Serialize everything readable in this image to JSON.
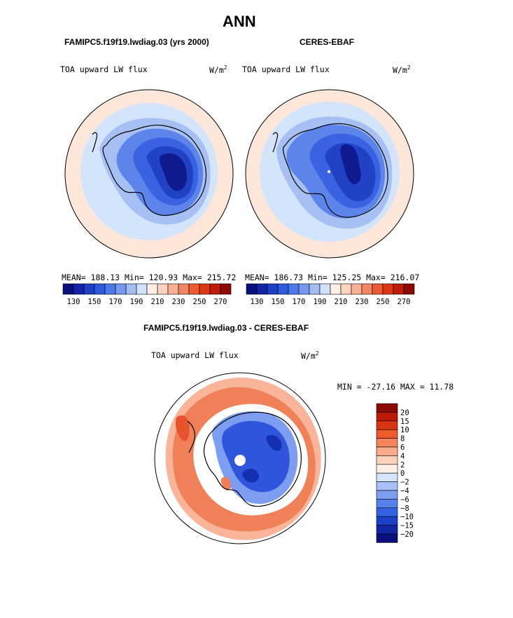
{
  "figure_title": "ANN",
  "variable_label": "TOA upward LW flux",
  "units_base": "W/m",
  "units_exp": "2",
  "left_panel": {
    "case_title": "FAMIPC5.f19f19.lwdiag.03 (yrs 2000)",
    "stats": "MEAN= 188.13  Min= 120.93  Max= 215.72"
  },
  "right_panel": {
    "case_title": "CERES-EBAF",
    "stats": "MEAN= 186.73  Min= 125.25  Max= 216.07"
  },
  "diff_panel": {
    "case_title": "FAMIPC5.f19f19.lwdiag.03 - CERES-EBAF",
    "minmax": "MIN = -27.16 MAX =  11.78"
  },
  "abs_colorbar": {
    "colors": [
      "#0a0f7c",
      "#1424a8",
      "#1f3fc6",
      "#2e5ae0",
      "#4d78ec",
      "#7698f0",
      "#a4bcf4",
      "#d0e1fb",
      "#fdeee6",
      "#fcd3bf",
      "#f8b095",
      "#f38662",
      "#ec5a35",
      "#dd3714",
      "#bf1d0a",
      "#8c0a05"
    ],
    "tick_labels": [
      "130",
      "150",
      "170",
      "190",
      "210",
      "230",
      "250",
      "270"
    ],
    "tick_after_box": [
      1,
      3,
      5,
      7,
      9,
      11,
      13,
      15
    ]
  },
  "diff_colorbar": {
    "colors_top_to_bottom": [
      "#8c0a05",
      "#bc1a08",
      "#d93411",
      "#ef5a2c",
      "#f7845a",
      "#f9aa88",
      "#fcd2bb",
      "#fdeee6",
      "#d4e4fb",
      "#a8c0f5",
      "#7d9ef0",
      "#5780eb",
      "#3461e3",
      "#1c40c8",
      "#1026a6",
      "#0a0f7c"
    ],
    "tick_labels": [
      "20",
      "15",
      "10",
      "8",
      "6",
      "4",
      "2",
      "0",
      "−2",
      "−4",
      "−6",
      "−8",
      "−10",
      "−15",
      "−20"
    ]
  },
  "map_colors": {
    "outer_ring": "#fde7db",
    "ocean_blue": "#d3e4fb",
    "coast_blue": "#a6c0f4",
    "interior_1": "#5c84ea",
    "interior_2": "#3a62e2",
    "interior_3": "#2142c5",
    "deep_core": "#0e1a8e",
    "diff_red_1": "#f9b49a",
    "diff_red_2": "#f08058",
    "diff_red_3": "#e6532c",
    "diff_blue_1": "#7d9ef0",
    "diff_blue_2": "#2e55dc",
    "diff_blue_3": "#1430b0"
  }
}
